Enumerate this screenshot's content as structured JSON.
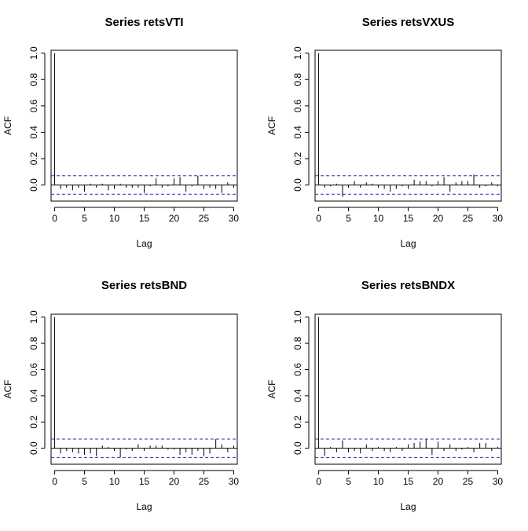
{
  "chart_data": [
    {
      "type": "bar",
      "title": "Series  retsVTI",
      "xlabel": "Lag",
      "ylabel": "ACF",
      "xlim": [
        0,
        30
      ],
      "ylim": [
        -0.1,
        1.0
      ],
      "xticks": [
        "0",
        "5",
        "10",
        "15",
        "20",
        "25",
        "30"
      ],
      "yticks": [
        "0.0",
        "0.2",
        "0.4",
        "0.6",
        "0.8",
        "1.0"
      ],
      "confidence_bounds": [
        0.07,
        -0.07
      ],
      "lags": [
        0,
        1,
        2,
        3,
        4,
        5,
        6,
        7,
        8,
        9,
        10,
        11,
        12,
        13,
        14,
        15,
        16,
        17,
        18,
        19,
        20,
        21,
        22,
        23,
        24,
        25,
        26,
        27,
        28,
        29,
        30
      ],
      "acf": [
        1.0,
        -0.03,
        -0.02,
        -0.04,
        -0.02,
        -0.05,
        0.01,
        -0.02,
        0.01,
        -0.04,
        -0.03,
        0.01,
        -0.02,
        -0.02,
        -0.02,
        -0.06,
        -0.01,
        0.05,
        -0.02,
        -0.01,
        0.05,
        0.06,
        -0.05,
        -0.01,
        0.07,
        -0.03,
        -0.02,
        -0.03,
        -0.06,
        0.02,
        -0.02
      ]
    },
    {
      "type": "bar",
      "title": "Series  retsVXUS",
      "xlabel": "Lag",
      "ylabel": "ACF",
      "xlim": [
        0,
        30
      ],
      "ylim": [
        -0.1,
        1.0
      ],
      "xticks": [
        "0",
        "5",
        "10",
        "15",
        "20",
        "25",
        "30"
      ],
      "yticks": [
        "0.0",
        "0.2",
        "0.4",
        "0.6",
        "0.8",
        "1.0"
      ],
      "confidence_bounds": [
        0.07,
        -0.07
      ],
      "lags": [
        0,
        1,
        2,
        3,
        4,
        5,
        6,
        7,
        8,
        9,
        10,
        11,
        12,
        13,
        14,
        15,
        16,
        17,
        18,
        19,
        20,
        21,
        22,
        23,
        24,
        25,
        26,
        27,
        28,
        29,
        30
      ],
      "acf": [
        1.0,
        -0.02,
        -0.01,
        0.01,
        -0.09,
        -0.02,
        0.03,
        -0.02,
        0.02,
        0.01,
        -0.02,
        -0.03,
        -0.05,
        -0.03,
        -0.01,
        -0.03,
        0.04,
        0.03,
        0.03,
        -0.01,
        0.03,
        0.06,
        -0.05,
        0.02,
        0.03,
        0.03,
        0.08,
        -0.02,
        -0.01,
        0.02,
        -0.01
      ]
    },
    {
      "type": "bar",
      "title": "Series  retsBND",
      "xlabel": "Lag",
      "ylabel": "ACF",
      "xlim": [
        0,
        30
      ],
      "ylim": [
        -0.1,
        1.0
      ],
      "xticks": [
        "0",
        "5",
        "10",
        "15",
        "20",
        "25",
        "30"
      ],
      "yticks": [
        "0.0",
        "0.2",
        "0.4",
        "0.6",
        "0.8",
        "1.0"
      ],
      "confidence_bounds": [
        0.07,
        -0.07
      ],
      "lags": [
        0,
        1,
        2,
        3,
        4,
        5,
        6,
        7,
        8,
        9,
        10,
        11,
        12,
        13,
        14,
        15,
        16,
        17,
        18,
        19,
        20,
        21,
        22,
        23,
        24,
        25,
        26,
        27,
        28,
        29,
        30
      ],
      "acf": [
        1.0,
        -0.04,
        -0.02,
        -0.03,
        -0.04,
        -0.05,
        -0.04,
        -0.06,
        0.02,
        0.01,
        -0.02,
        -0.07,
        -0.01,
        -0.02,
        0.03,
        -0.02,
        0.02,
        0.02,
        0.02,
        -0.01,
        -0.01,
        -0.05,
        -0.03,
        -0.05,
        -0.02,
        -0.06,
        -0.04,
        0.07,
        0.03,
        -0.03,
        0.02
      ]
    },
    {
      "type": "bar",
      "title": "Series  retsBNDX",
      "xlabel": "Lag",
      "ylabel": "ACF",
      "xlim": [
        0,
        30
      ],
      "ylim": [
        -0.1,
        1.0
      ],
      "xticks": [
        "0",
        "5",
        "10",
        "15",
        "20",
        "25",
        "30"
      ],
      "yticks": [
        "0.0",
        "0.2",
        "0.4",
        "0.6",
        "0.8",
        "1.0"
      ],
      "confidence_bounds": [
        0.07,
        -0.07
      ],
      "lags": [
        0,
        1,
        2,
        3,
        4,
        5,
        6,
        7,
        8,
        9,
        10,
        11,
        12,
        13,
        14,
        15,
        16,
        17,
        18,
        19,
        20,
        21,
        22,
        23,
        24,
        25,
        26,
        27,
        28,
        29,
        30
      ],
      "acf": [
        1.0,
        -0.06,
        0.01,
        -0.03,
        0.06,
        -0.03,
        -0.02,
        -0.04,
        0.03,
        -0.02,
        0.01,
        -0.02,
        -0.03,
        0.01,
        -0.02,
        0.03,
        0.04,
        0.05,
        0.07,
        -0.05,
        0.05,
        -0.02,
        0.03,
        -0.02,
        -0.01,
        0.01,
        -0.03,
        0.04,
        0.04,
        -0.02,
        0.01
      ]
    }
  ]
}
